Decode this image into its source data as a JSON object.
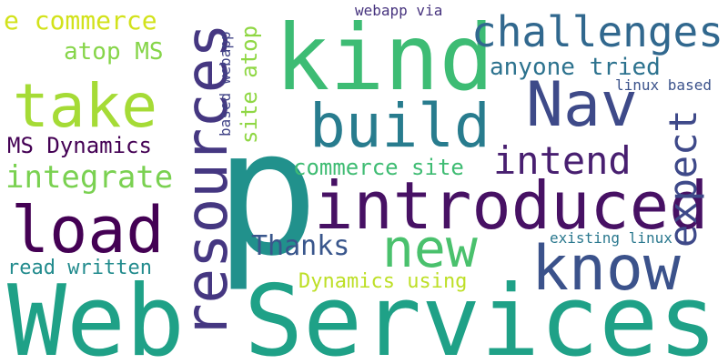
{
  "words": {
    "web_services": {
      "text": "Web Services",
      "color": "#1fa187"
    },
    "p": {
      "text": "p",
      "color": "#21918c"
    },
    "kind": {
      "text": "kind",
      "color": "#3dbc74"
    },
    "resources": {
      "text": "resources",
      "color": "#453781"
    },
    "introduced": {
      "text": "introduced",
      "color": "#471164"
    },
    "take": {
      "text": "take",
      "color": "#a5db36"
    },
    "build": {
      "text": "build",
      "color": "#287c8e"
    },
    "load": {
      "text": "load",
      "color": "#440154"
    },
    "nav": {
      "text": "Nav",
      "color": "#3e4a89"
    },
    "know": {
      "text": "know",
      "color": "#3b528b"
    },
    "new": {
      "text": "new",
      "color": "#4ac16d"
    },
    "challenges": {
      "text": "challenges",
      "color": "#31688e"
    },
    "expect": {
      "text": "expect",
      "color": "#3e4989"
    },
    "intend": {
      "text": "intend",
      "color": "#481f70"
    },
    "integrate": {
      "text": "integrate",
      "color": "#7ad151"
    },
    "thanks": {
      "text": "Thanks",
      "color": "#39568c"
    },
    "ms_dynamics": {
      "text": "MS Dynamics",
      "color": "#440154"
    },
    "e_commerce": {
      "text": "e commerce",
      "color": "#d2e21b"
    },
    "anyone_tried": {
      "text": "anyone tried",
      "color": "#2c728e"
    },
    "atop_ms": {
      "text": "atop MS",
      "color": "#86d549"
    },
    "commerce_site": {
      "text": "commerce site",
      "color": "#3fbc73"
    },
    "site_atop": {
      "text": "site atop",
      "color": "#8fd744"
    },
    "read_written": {
      "text": "read written",
      "color": "#228b8d"
    },
    "dynamics_using": {
      "text": "Dynamics using",
      "color": "#bddf26"
    },
    "existing_linux": {
      "text": "existing linux",
      "color": "#2a788e"
    },
    "linux_based": {
      "text": "linux based",
      "color": "#3b528b"
    },
    "webapp_via": {
      "text": "webapp via",
      "color": "#46337e"
    },
    "based_webapp": {
      "text": "based webapp",
      "color": "#414487"
    }
  }
}
